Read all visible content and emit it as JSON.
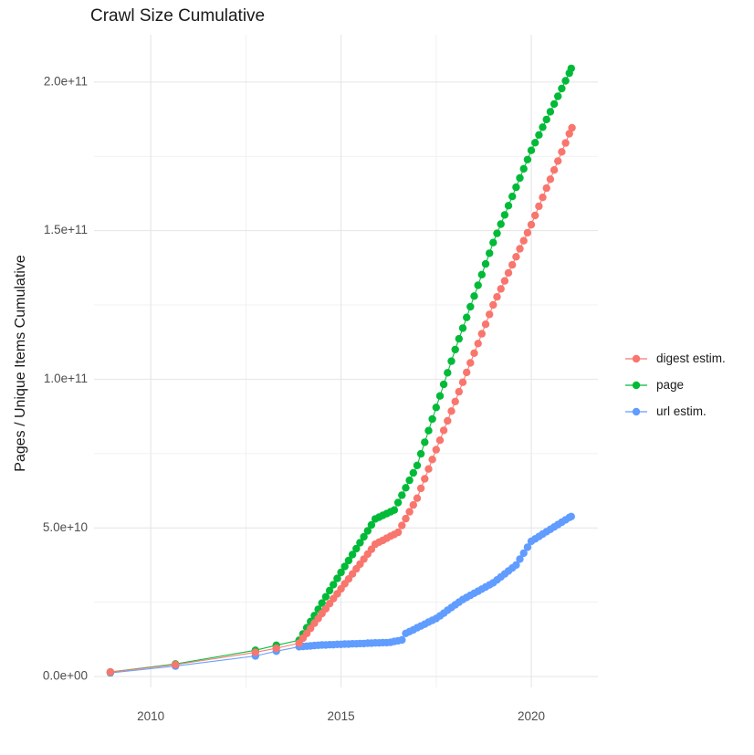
{
  "chart_data": {
    "type": "scatter",
    "title": "Crawl Size Cumulative",
    "xlabel": "",
    "ylabel": "Pages / Unique Items Cumulative",
    "legend_position": "right",
    "grid": true,
    "grid_color_major": "#E4E4E4",
    "grid_color_minor": "#F1F1F1",
    "tick_label_color": "#4D4D4D",
    "y_unit": "1e9",
    "x_axis": {
      "range": [
        2008.51,
        2021.75
      ],
      "ticks": [
        {
          "v": 2010,
          "label": "2010"
        },
        {
          "v": 2015,
          "label": "2015"
        },
        {
          "v": 2020,
          "label": "2020"
        }
      ],
      "minor": [
        2012.5,
        2017.5
      ]
    },
    "y_axis": {
      "range": [
        0,
        215
      ],
      "ticks": [
        {
          "v": 0,
          "label": "0.0e+00"
        },
        {
          "v": 50,
          "label": "5.0e+10"
        },
        {
          "v": 100,
          "label": "1.0e+11"
        },
        {
          "v": 150,
          "label": "1.5e+11"
        },
        {
          "v": 200,
          "label": "2.0e+11"
        }
      ],
      "minor": [
        25,
        75,
        125,
        175
      ]
    },
    "series": [
      {
        "name": "digest estim.",
        "color": "#F8766D",
        "points": [
          [
            2008.94,
            1.5
          ],
          [
            2010.65,
            4.0
          ],
          [
            2012.75,
            8.1
          ],
          [
            2013.3,
            9.5
          ],
          [
            2013.9,
            11.2
          ],
          [
            2014.0,
            12.9
          ],
          [
            2014.1,
            14.5
          ],
          [
            2014.2,
            16.2
          ],
          [
            2014.3,
            17.9
          ],
          [
            2014.4,
            19.5
          ],
          [
            2014.5,
            21.2
          ],
          [
            2014.6,
            22.8
          ],
          [
            2014.7,
            24.5
          ],
          [
            2014.8,
            26.2
          ],
          [
            2014.9,
            27.8
          ],
          [
            2015.0,
            29.5
          ],
          [
            2015.1,
            31.2
          ],
          [
            2015.2,
            32.8
          ],
          [
            2015.3,
            34.5
          ],
          [
            2015.4,
            36.2
          ],
          [
            2015.5,
            37.8
          ],
          [
            2015.6,
            39.5
          ],
          [
            2015.7,
            41.2
          ],
          [
            2015.8,
            42.8
          ],
          [
            2015.9,
            44.5
          ],
          [
            2016.0,
            45.2
          ],
          [
            2016.1,
            45.8
          ],
          [
            2016.2,
            46.5
          ],
          [
            2016.3,
            47.2
          ],
          [
            2016.4,
            47.8
          ],
          [
            2016.5,
            48.5
          ],
          [
            2016.6,
            50.8
          ],
          [
            2016.7,
            53.1
          ],
          [
            2016.8,
            55.4
          ],
          [
            2016.9,
            57.7
          ],
          [
            2017.0,
            60.0
          ],
          [
            2017.1,
            63.3
          ],
          [
            2017.2,
            66.5
          ],
          [
            2017.3,
            69.8
          ],
          [
            2017.4,
            73.0
          ],
          [
            2017.5,
            76.3
          ],
          [
            2017.6,
            79.5
          ],
          [
            2017.7,
            82.8
          ],
          [
            2017.8,
            86.0
          ],
          [
            2017.9,
            89.3
          ],
          [
            2018.0,
            92.5
          ],
          [
            2018.1,
            95.8
          ],
          [
            2018.2,
            99.0
          ],
          [
            2018.3,
            102.3
          ],
          [
            2018.4,
            105.5
          ],
          [
            2018.5,
            108.8
          ],
          [
            2018.6,
            112.0
          ],
          [
            2018.7,
            115.3
          ],
          [
            2018.8,
            118.5
          ],
          [
            2018.9,
            121.8
          ],
          [
            2019.0,
            125.0
          ],
          [
            2019.1,
            127.7
          ],
          [
            2019.2,
            130.4
          ],
          [
            2019.3,
            133.1
          ],
          [
            2019.4,
            135.8
          ],
          [
            2019.5,
            138.5
          ],
          [
            2019.6,
            141.2
          ],
          [
            2019.7,
            143.9
          ],
          [
            2019.8,
            146.6
          ],
          [
            2019.9,
            149.3
          ],
          [
            2020.0,
            152.0
          ],
          [
            2020.1,
            155.1
          ],
          [
            2020.2,
            158.2
          ],
          [
            2020.3,
            161.2
          ],
          [
            2020.4,
            164.3
          ],
          [
            2020.5,
            167.3
          ],
          [
            2020.6,
            170.4
          ],
          [
            2020.7,
            173.4
          ],
          [
            2020.8,
            176.5
          ],
          [
            2020.9,
            179.5
          ],
          [
            2021.0,
            182.6
          ],
          [
            2021.07,
            184.6
          ]
        ]
      },
      {
        "name": "page",
        "color": "#00BA38",
        "points": [
          [
            2008.94,
            1.5
          ],
          [
            2010.65,
            4.2
          ],
          [
            2012.75,
            8.8
          ],
          [
            2013.3,
            10.5
          ],
          [
            2013.9,
            12.2
          ],
          [
            2014.0,
            14.3
          ],
          [
            2014.1,
            16.4
          ],
          [
            2014.2,
            18.5
          ],
          [
            2014.3,
            20.5
          ],
          [
            2014.4,
            22.6
          ],
          [
            2014.5,
            24.7
          ],
          [
            2014.6,
            26.8
          ],
          [
            2014.7,
            28.9
          ],
          [
            2014.8,
            30.9
          ],
          [
            2014.9,
            33.0
          ],
          [
            2015.0,
            35.0
          ],
          [
            2015.1,
            37.0
          ],
          [
            2015.2,
            39.0
          ],
          [
            2015.3,
            41.0
          ],
          [
            2015.4,
            43.0
          ],
          [
            2015.5,
            45.0
          ],
          [
            2015.6,
            47.0
          ],
          [
            2015.7,
            49.0
          ],
          [
            2015.8,
            51.0
          ],
          [
            2015.9,
            53.0
          ],
          [
            2016.0,
            53.6
          ],
          [
            2016.1,
            54.2
          ],
          [
            2016.2,
            54.8
          ],
          [
            2016.3,
            55.4
          ],
          [
            2016.4,
            56.0
          ],
          [
            2016.5,
            58.5
          ],
          [
            2016.6,
            61.0
          ],
          [
            2016.7,
            63.5
          ],
          [
            2016.8,
            66.0
          ],
          [
            2016.9,
            68.5
          ],
          [
            2017.0,
            71.0
          ],
          [
            2017.1,
            74.9
          ],
          [
            2017.2,
            78.8
          ],
          [
            2017.3,
            82.7
          ],
          [
            2017.4,
            86.6
          ],
          [
            2017.5,
            90.5
          ],
          [
            2017.6,
            94.4
          ],
          [
            2017.7,
            98.3
          ],
          [
            2017.8,
            102.2
          ],
          [
            2017.9,
            106.1
          ],
          [
            2018.0,
            110.0
          ],
          [
            2018.1,
            113.6
          ],
          [
            2018.2,
            117.2
          ],
          [
            2018.3,
            120.8
          ],
          [
            2018.4,
            124.4
          ],
          [
            2018.5,
            128.0
          ],
          [
            2018.6,
            131.6
          ],
          [
            2018.7,
            135.2
          ],
          [
            2018.8,
            138.8
          ],
          [
            2018.9,
            142.4
          ],
          [
            2019.0,
            146.0
          ],
          [
            2019.1,
            149.1
          ],
          [
            2019.2,
            152.2
          ],
          [
            2019.3,
            155.3
          ],
          [
            2019.4,
            158.4
          ],
          [
            2019.5,
            161.5
          ],
          [
            2019.6,
            164.6
          ],
          [
            2019.7,
            167.7
          ],
          [
            2019.8,
            170.8
          ],
          [
            2019.9,
            173.9
          ],
          [
            2020.0,
            177.0
          ],
          [
            2020.1,
            179.6
          ],
          [
            2020.2,
            182.2
          ],
          [
            2020.3,
            184.8
          ],
          [
            2020.4,
            187.4
          ],
          [
            2020.5,
            190.0
          ],
          [
            2020.6,
            192.6
          ],
          [
            2020.7,
            195.2
          ],
          [
            2020.8,
            197.8
          ],
          [
            2020.9,
            200.4
          ],
          [
            2021.0,
            203.0
          ],
          [
            2021.05,
            204.6
          ]
        ]
      },
      {
        "name": "url estim.",
        "color": "#619CFF",
        "points": [
          [
            2008.94,
            1.2
          ],
          [
            2010.65,
            3.5
          ],
          [
            2012.75,
            6.9
          ],
          [
            2013.3,
            8.5
          ],
          [
            2013.9,
            10.0
          ],
          [
            2014.0,
            10.1
          ],
          [
            2014.1,
            10.2
          ],
          [
            2014.2,
            10.3
          ],
          [
            2014.3,
            10.4
          ],
          [
            2014.4,
            10.5
          ],
          [
            2014.5,
            10.6
          ],
          [
            2014.6,
            10.6
          ],
          [
            2014.7,
            10.7
          ],
          [
            2014.8,
            10.7
          ],
          [
            2014.9,
            10.8
          ],
          [
            2015.0,
            10.8
          ],
          [
            2015.1,
            10.9
          ],
          [
            2015.2,
            10.9
          ],
          [
            2015.3,
            11.0
          ],
          [
            2015.4,
            11.0
          ],
          [
            2015.5,
            11.1
          ],
          [
            2015.6,
            11.1
          ],
          [
            2015.7,
            11.2
          ],
          [
            2015.8,
            11.2
          ],
          [
            2015.9,
            11.3
          ],
          [
            2016.0,
            11.3
          ],
          [
            2016.1,
            11.4
          ],
          [
            2016.2,
            11.4
          ],
          [
            2016.3,
            11.5
          ],
          [
            2016.4,
            11.8
          ],
          [
            2016.5,
            12.0
          ],
          [
            2016.6,
            12.3
          ],
          [
            2016.7,
            14.5
          ],
          [
            2016.8,
            15.1
          ],
          [
            2016.9,
            15.7
          ],
          [
            2017.0,
            16.4
          ],
          [
            2017.1,
            17.0
          ],
          [
            2017.2,
            17.6
          ],
          [
            2017.3,
            18.3
          ],
          [
            2017.4,
            18.9
          ],
          [
            2017.5,
            19.5
          ],
          [
            2017.6,
            20.4
          ],
          [
            2017.7,
            21.3
          ],
          [
            2017.8,
            22.3
          ],
          [
            2017.9,
            23.2
          ],
          [
            2018.0,
            24.1
          ],
          [
            2018.1,
            25.0
          ],
          [
            2018.2,
            25.9
          ],
          [
            2018.3,
            26.6
          ],
          [
            2018.4,
            27.3
          ],
          [
            2018.5,
            28.0
          ],
          [
            2018.6,
            28.7
          ],
          [
            2018.7,
            29.4
          ],
          [
            2018.8,
            30.1
          ],
          [
            2018.9,
            30.8
          ],
          [
            2019.0,
            31.5
          ],
          [
            2019.1,
            32.5
          ],
          [
            2019.2,
            33.5
          ],
          [
            2019.3,
            34.5
          ],
          [
            2019.4,
            35.5
          ],
          [
            2019.5,
            36.5
          ],
          [
            2019.6,
            37.5
          ],
          [
            2019.7,
            39.5
          ],
          [
            2019.8,
            41.5
          ],
          [
            2019.9,
            43.5
          ],
          [
            2020.0,
            45.5
          ],
          [
            2020.1,
            46.3
          ],
          [
            2020.2,
            47.1
          ],
          [
            2020.3,
            47.9
          ],
          [
            2020.4,
            48.7
          ],
          [
            2020.5,
            49.5
          ],
          [
            2020.6,
            50.3
          ],
          [
            2020.7,
            51.1
          ],
          [
            2020.8,
            51.9
          ],
          [
            2020.9,
            52.7
          ],
          [
            2021.0,
            53.5
          ],
          [
            2021.05,
            53.8
          ]
        ]
      }
    ]
  }
}
